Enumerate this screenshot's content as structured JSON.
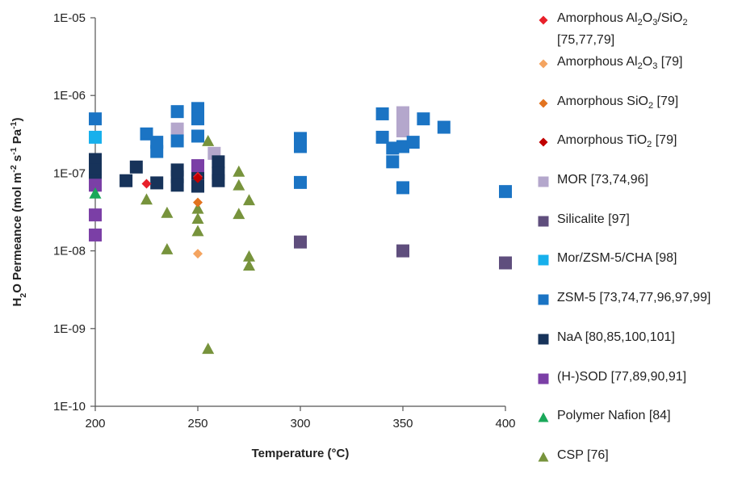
{
  "chart_data": {
    "type": "scatter",
    "xlabel": "Temperature (°C)",
    "ylabel_parts": [
      "H",
      "2",
      "O Permeance (mol m",
      "-2",
      " s",
      "-1",
      " Pa",
      "-1",
      ")"
    ],
    "x_range": [
      200,
      400
    ],
    "x_ticks": [
      "200",
      "250",
      "300",
      "350",
      "400"
    ],
    "y_scale": "log",
    "y_range": [
      1e-10,
      1e-05
    ],
    "y_ticks": [
      "1E-10",
      "1E-09",
      "1E-08",
      "1E-07",
      "1E-06",
      "1E-05"
    ],
    "legend_position": "right",
    "series": [
      {
        "label_parts": [
          "Amorphous  Al",
          "2",
          "O",
          "3",
          "/SiO",
          "2"
        ],
        "label_line2": "[75,77,79]",
        "marker": "diamond",
        "color": "#e8202a",
        "points": [
          [
            225,
            7.3e-08
          ],
          [
            250,
            9e-08
          ]
        ]
      },
      {
        "label_parts": [
          "Amorphous  Al",
          "2",
          "O",
          "3",
          " [79]"
        ],
        "marker": "diamond",
        "color": "#f4a460",
        "points": [
          [
            250,
            9.2e-09
          ]
        ]
      },
      {
        "label_parts": [
          "Amorphous  SiO",
          "2",
          "  [79]"
        ],
        "marker": "diamond",
        "color": "#e2731f",
        "points": [
          [
            250,
            4.2e-08
          ]
        ]
      },
      {
        "label_parts": [
          "Amorphous  TiO",
          "2",
          "  [79]"
        ],
        "marker": "diamond",
        "color": "#c00000",
        "points": [
          [
            250,
            8.6e-08
          ]
        ]
      },
      {
        "label_parts": [
          "MOR [73,74,96]"
        ],
        "marker": "square",
        "color": "#b4a7cc",
        "points": [
          [
            240,
            3.7e-07
          ],
          [
            258,
            1.8e-07
          ],
          [
            350,
            6e-07
          ],
          [
            350,
            4.5e-07
          ],
          [
            350,
            3.5e-07
          ]
        ]
      },
      {
        "label_parts": [
          "Silicalite [97]"
        ],
        "marker": "square",
        "color": "#5f4e7d",
        "points": [
          [
            300,
            1.3e-08
          ],
          [
            350,
            1e-08
          ],
          [
            400,
            7e-09
          ]
        ]
      },
      {
        "label_parts": [
          "Mor/ZSM-5/CHA [98]"
        ],
        "marker": "square",
        "color": "#17b0ec",
        "points": [
          [
            200,
            2.9e-07
          ]
        ]
      },
      {
        "label_parts": [
          "ZSM-5 [73,74,77,96,97,99]"
        ],
        "marker": "square",
        "color": "#1b74c4",
        "points": [
          [
            200,
            5e-07
          ],
          [
            225,
            3.2e-07
          ],
          [
            230,
            2.5e-07
          ],
          [
            230,
            1.9e-07
          ],
          [
            240,
            6.2e-07
          ],
          [
            240,
            2.6e-07
          ],
          [
            250,
            6.8e-07
          ],
          [
            250,
            5e-07
          ],
          [
            250,
            3e-07
          ],
          [
            300,
            2.8e-07
          ],
          [
            300,
            2.2e-07
          ],
          [
            300,
            7.6e-08
          ],
          [
            340,
            5.8e-07
          ],
          [
            340,
            2.9e-07
          ],
          [
            345,
            2.1e-07
          ],
          [
            345,
            1.4e-07
          ],
          [
            350,
            2.2e-07
          ],
          [
            350,
            6.5e-08
          ],
          [
            355,
            2.5e-07
          ],
          [
            360,
            5e-07
          ],
          [
            370,
            3.9e-07
          ],
          [
            400,
            5.8e-08
          ]
        ]
      },
      {
        "label_parts": [
          "NaA [80,85,100,101]"
        ],
        "marker": "square",
        "color": "#17335a",
        "points": [
          [
            200,
            1.5e-07
          ],
          [
            200,
            1.1e-07
          ],
          [
            200,
            8e-08
          ],
          [
            215,
            8e-08
          ],
          [
            220,
            1.2e-07
          ],
          [
            230,
            7.5e-08
          ],
          [
            240,
            1.1e-07
          ],
          [
            240,
            9e-08
          ],
          [
            240,
            7e-08
          ],
          [
            250,
            1e-07
          ],
          [
            250,
            6.8e-08
          ],
          [
            260,
            1.4e-07
          ],
          [
            260,
            1e-07
          ],
          [
            260,
            8e-08
          ]
        ]
      },
      {
        "label_parts": [
          "(H-)SOD [77,89,90,91]"
        ],
        "marker": "square",
        "color": "#7b3fa6",
        "points": [
          [
            200,
            7e-08
          ],
          [
            200,
            2.9e-08
          ],
          [
            200,
            1.6e-08
          ],
          [
            250,
            1.25e-07
          ]
        ]
      },
      {
        "label_parts": [
          "Polymer Nafion [84]"
        ],
        "marker": "triangle",
        "color": "#1aa85a",
        "points": [
          [
            200,
            5.5e-08
          ]
        ]
      },
      {
        "label_parts": [
          "CSP [76]"
        ],
        "marker": "triangle",
        "color": "#77933c",
        "points": [
          [
            225,
            4.6e-08
          ],
          [
            235,
            3.1e-08
          ],
          [
            235,
            1.05e-08
          ],
          [
            250,
            3.5e-08
          ],
          [
            250,
            2.6e-08
          ],
          [
            250,
            1.8e-08
          ],
          [
            255,
            2.6e-07
          ],
          [
            255,
            5.5e-10
          ],
          [
            270,
            1.05e-07
          ],
          [
            270,
            7e-08
          ],
          [
            270,
            3e-08
          ],
          [
            275,
            4.5e-08
          ],
          [
            275,
            8.5e-09
          ],
          [
            275,
            6.5e-09
          ]
        ]
      }
    ]
  }
}
